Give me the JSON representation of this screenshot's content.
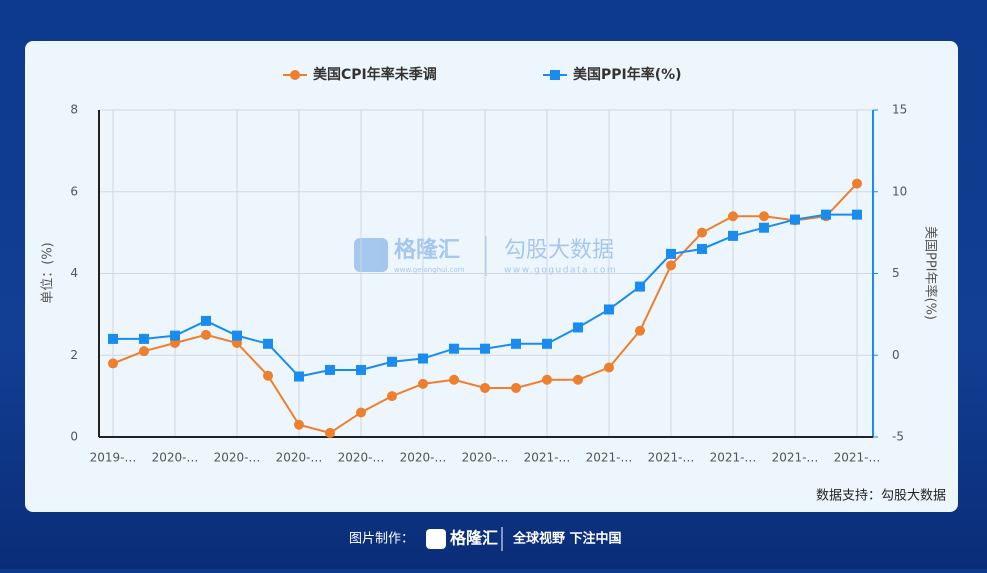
{
  "chart_data": {
    "type": "line",
    "categories": [
      "2019-…",
      null,
      "2020-…",
      null,
      "2020-…",
      null,
      "2020-…",
      null,
      "2020-…",
      null,
      "2020-…",
      null,
      "2020-…",
      null,
      "2021-…",
      null,
      "2021-…",
      null,
      "2021-…",
      null,
      "2021-…",
      null,
      "2021-…",
      null,
      "2021-…"
    ],
    "series": [
      {
        "name": "美国CPI年率未季调",
        "color": "#ee7f2d",
        "marker": "circle",
        "values": [
          1.8,
          2.1,
          2.3,
          2.5,
          2.3,
          1.5,
          0.3,
          0.1,
          0.6,
          1.0,
          1.3,
          1.4,
          1.2,
          1.2,
          1.4,
          1.4,
          1.7,
          2.6,
          4.2,
          5.0,
          5.4,
          5.4,
          5.3,
          5.4,
          6.2
        ]
      },
      {
        "name": "美国PPI年率(%)",
        "color": "#1a8cf0",
        "marker": "square",
        "axis": "y2",
        "values": [
          1.0,
          1.0,
          1.2,
          2.1,
          1.2,
          0.7,
          -1.3,
          -0.9,
          -0.9,
          -0.4,
          -0.2,
          0.4,
          0.4,
          0.7,
          0.7,
          1.7,
          2.8,
          4.2,
          6.2,
          6.5,
          7.3,
          7.8,
          8.3,
          8.6,
          8.6
        ]
      }
    ],
    "ylabel": "单位：(%)",
    "y2label": "美国PPI年率(%)",
    "ylim": [
      0,
      8
    ],
    "yticks": [
      0,
      2,
      4,
      6,
      8
    ],
    "y2lim": [
      -5,
      15
    ],
    "y2ticks": [
      -5,
      0,
      5,
      10,
      15
    ],
    "grid": true
  },
  "watermark": {
    "brand": "格隆汇",
    "brand_url": "www.gelonghui.com",
    "partner": "勾股大数据",
    "partner_url": "www.gogudata.com"
  },
  "source": "数据支持：勾股大数据",
  "footer": {
    "made_by": "图片制作：",
    "brand": "格隆汇",
    "slogan": "全球视野 下注中国"
  }
}
